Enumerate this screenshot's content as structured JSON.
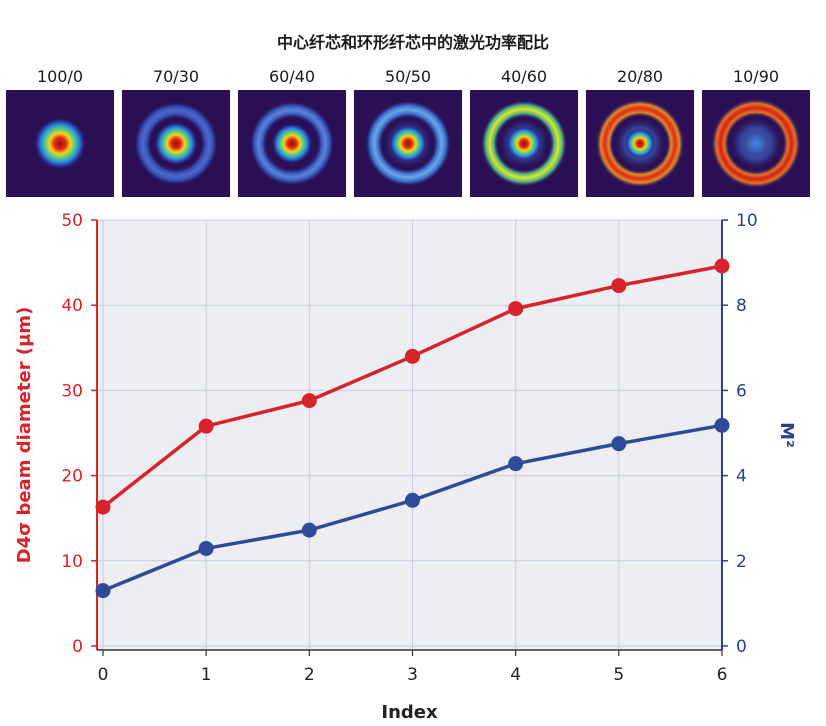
{
  "header": {
    "title": "中心纤芯和环形纤芯中的激光功率配比"
  },
  "beam_profiles": [
    {
      "label": "100/0",
      "center_power_fraction": 1.0,
      "ring_power_fraction": 0.0
    },
    {
      "label": "70/30",
      "center_power_fraction": 0.7,
      "ring_power_fraction": 0.3
    },
    {
      "label": "60/40",
      "center_power_fraction": 0.6,
      "ring_power_fraction": 0.4
    },
    {
      "label": "50/50",
      "center_power_fraction": 0.5,
      "ring_power_fraction": 0.5
    },
    {
      "label": "40/60",
      "center_power_fraction": 0.4,
      "ring_power_fraction": 0.6
    },
    {
      "label": "20/80",
      "center_power_fraction": 0.2,
      "ring_power_fraction": 0.8
    },
    {
      "label": "10/90",
      "center_power_fraction": 0.1,
      "ring_power_fraction": 0.9
    }
  ],
  "colors": {
    "left_axis": "#d8232a",
    "right_axis": "#2e3f8f",
    "series_diameter": "#d8232a",
    "series_m2": "#2e4b9b",
    "plot_background": "#edeef2",
    "grid": "#c9cbe0"
  },
  "chart_data": {
    "type": "line",
    "title": "",
    "xlabel": "Index",
    "ylabel_left": "D4σ beam diameter (μm)",
    "ylabel_right": "M²",
    "x": [
      0,
      1,
      2,
      3,
      4,
      5,
      6
    ],
    "xlim": [
      0,
      6
    ],
    "ylim_left": [
      0,
      50
    ],
    "ylim_right": [
      0,
      10
    ],
    "x_ticks": [
      "0",
      "1",
      "2",
      "3",
      "4",
      "5",
      "6"
    ],
    "y_ticks_left": [
      "0",
      "10",
      "20",
      "30",
      "40",
      "50"
    ],
    "y_ticks_right": [
      "0",
      "2",
      "4",
      "6",
      "8",
      "10"
    ],
    "grid": true,
    "legend": "none",
    "series": [
      {
        "axis": "left",
        "values": [
          16.3,
          25.8,
          28.8,
          34.0,
          39.6,
          42.3,
          44.6
        ]
      },
      {
        "axis": "right",
        "values": [
          1.3,
          2.29,
          2.72,
          3.42,
          4.28,
          4.75,
          5.18
        ]
      }
    ]
  }
}
